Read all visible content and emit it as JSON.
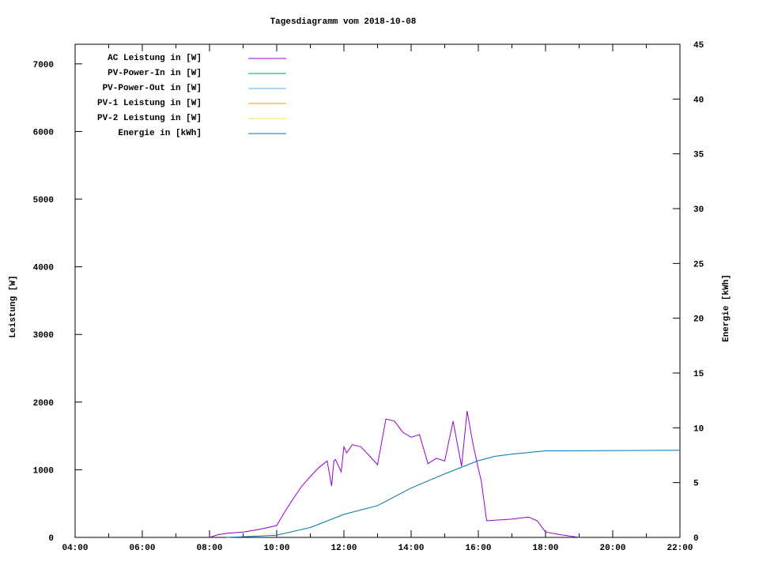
{
  "chart_data": {
    "type": "line",
    "title": "Tagesdiagramm vom 2018-10-08",
    "ylabel": "Leistung [W]",
    "y2label": "Energie [kWh]",
    "xlabel": "",
    "xlim": [
      "04:00",
      "22:00"
    ],
    "ylim": [
      0,
      7290
    ],
    "y2lim": [
      0,
      45
    ],
    "xticks": [
      "04:00",
      "06:00",
      "08:00",
      "10:00",
      "12:00",
      "14:00",
      "16:00",
      "18:00",
      "20:00",
      "22:00"
    ],
    "yticks": [
      "0",
      "1000",
      "2000",
      "3000",
      "4000",
      "5000",
      "6000",
      "7000"
    ],
    "y2ticks": [
      "0",
      "5",
      "10",
      "15",
      "20",
      "25",
      "30",
      "35",
      "40",
      "45"
    ],
    "grid": false,
    "legend_position": "top-left",
    "series": [
      {
        "name": "AC Leistung in [W]",
        "axis": "left",
        "color": "#9400d3",
        "x": [
          "08:00",
          "08:15",
          "08:30",
          "09:00",
          "09:30",
          "10:00",
          "10:15",
          "10:30",
          "10:45",
          "11:00",
          "11:15",
          "11:30",
          "11:38",
          "11:42",
          "11:45",
          "11:55",
          "12:00",
          "12:05",
          "12:15",
          "12:30",
          "12:45",
          "13:00",
          "13:15",
          "13:30",
          "13:45",
          "14:00",
          "14:15",
          "14:30",
          "14:45",
          "15:00",
          "15:15",
          "15:30",
          "15:40",
          "15:50",
          "16:00",
          "16:05",
          "16:15",
          "16:30",
          "17:00",
          "17:30",
          "17:45",
          "18:00",
          "18:30",
          "19:00"
        ],
        "y": [
          0,
          40,
          60,
          80,
          120,
          175,
          385,
          580,
          760,
          900,
          1030,
          1130,
          760,
          1130,
          1150,
          970,
          1340,
          1250,
          1370,
          1340,
          1210,
          1075,
          1750,
          1720,
          1555,
          1480,
          1520,
          1090,
          1170,
          1130,
          1720,
          1050,
          1870,
          1400,
          1015,
          850,
          245,
          255,
          270,
          300,
          245,
          80,
          35,
          0
        ]
      },
      {
        "name": "PV-Power-In in [W]",
        "axis": "left",
        "color": "#009e73",
        "x": [],
        "y": []
      },
      {
        "name": "PV-Power-Out in [W]",
        "axis": "left",
        "color": "#56b4e9",
        "x": [],
        "y": []
      },
      {
        "name": "PV-1 Leistung in [W]",
        "axis": "left",
        "color": "#e69f00",
        "x": [],
        "y": []
      },
      {
        "name": "PV-2 Leistung in [W]",
        "axis": "left",
        "color": "#f0e442",
        "x": [],
        "y": []
      },
      {
        "name": "Energie in [kWh]",
        "axis": "right",
        "color": "#0072b2",
        "x": [
          "08:30",
          "09:00",
          "10:00",
          "11:00",
          "12:00",
          "13:00",
          "14:00",
          "15:00",
          "16:00",
          "16:30",
          "17:00",
          "18:00",
          "22:00"
        ],
        "y": [
          0,
          0.05,
          0.2,
          0.9,
          2.1,
          2.9,
          4.5,
          5.8,
          7.0,
          7.4,
          7.6,
          7.9,
          7.95
        ]
      }
    ]
  }
}
